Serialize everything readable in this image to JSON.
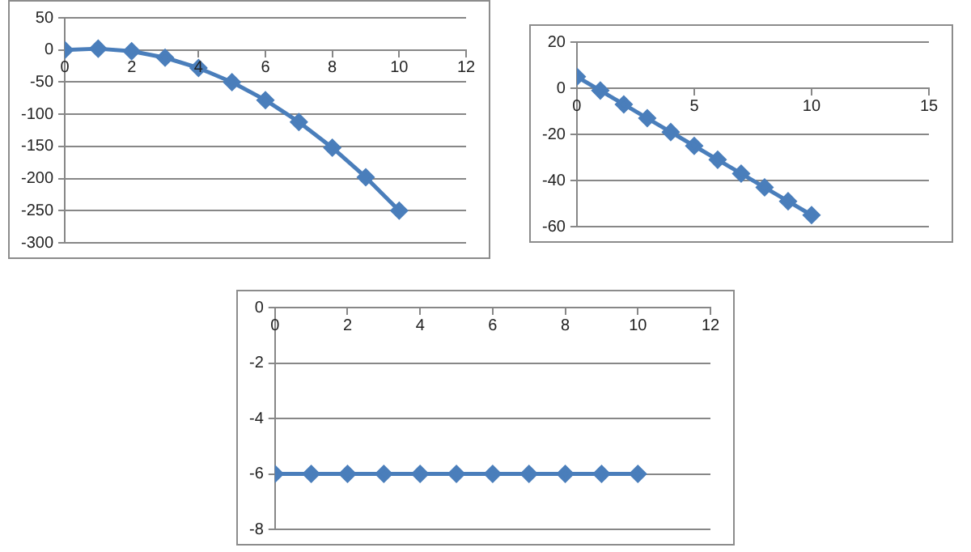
{
  "chart_data": [
    {
      "type": "line",
      "x": [
        0,
        1,
        2,
        3,
        4,
        5,
        6,
        7,
        8,
        9,
        10
      ],
      "series": [
        {
          "color": "#4a7ebb",
          "values": [
            0,
            2,
            -2,
            -12,
            -28,
            -50,
            -78,
            -112,
            -152,
            -198,
            -250
          ]
        }
      ],
      "xlim": [
        0,
        12
      ],
      "xticks": [
        0,
        2,
        4,
        6,
        8,
        10,
        12
      ],
      "ylim": [
        -300,
        50
      ],
      "yticks": [
        -300,
        -250,
        -200,
        -150,
        -100,
        -50,
        0,
        50
      ],
      "grid": "y",
      "legend": false,
      "marker": "diamond",
      "line_style": "solid"
    },
    {
      "type": "line",
      "x": [
        0,
        1,
        2,
        3,
        4,
        5,
        6,
        7,
        8,
        9,
        10
      ],
      "series": [
        {
          "color": "#4a7ebb",
          "values": [
            5,
            -1,
            -7,
            -13,
            -19,
            -25,
            -31,
            -37,
            -43,
            -49,
            -55
          ]
        }
      ],
      "xlim": [
        0,
        15
      ],
      "xticks": [
        0,
        5,
        10,
        15
      ],
      "ylim": [
        -60,
        20
      ],
      "yticks": [
        -60,
        -40,
        -20,
        0,
        20
      ],
      "grid": "y",
      "legend": false,
      "marker": "diamond",
      "line_style": "solid"
    },
    {
      "type": "line",
      "x": [
        0,
        1,
        2,
        3,
        4,
        5,
        6,
        7,
        8,
        9,
        10
      ],
      "series": [
        {
          "color": "#4a7ebb",
          "values": [
            -6,
            -6,
            -6,
            -6,
            -6,
            -6,
            -6,
            -6,
            -6,
            -6,
            -6
          ]
        }
      ],
      "xlim": [
        0,
        12
      ],
      "xticks": [
        0,
        2,
        4,
        6,
        8,
        10,
        12
      ],
      "ylim": [
        -8,
        0
      ],
      "yticks": [
        -8,
        -6,
        -4,
        -2,
        0
      ],
      "grid": "y",
      "legend": false,
      "marker": "diamond",
      "line_style": "solid"
    }
  ]
}
